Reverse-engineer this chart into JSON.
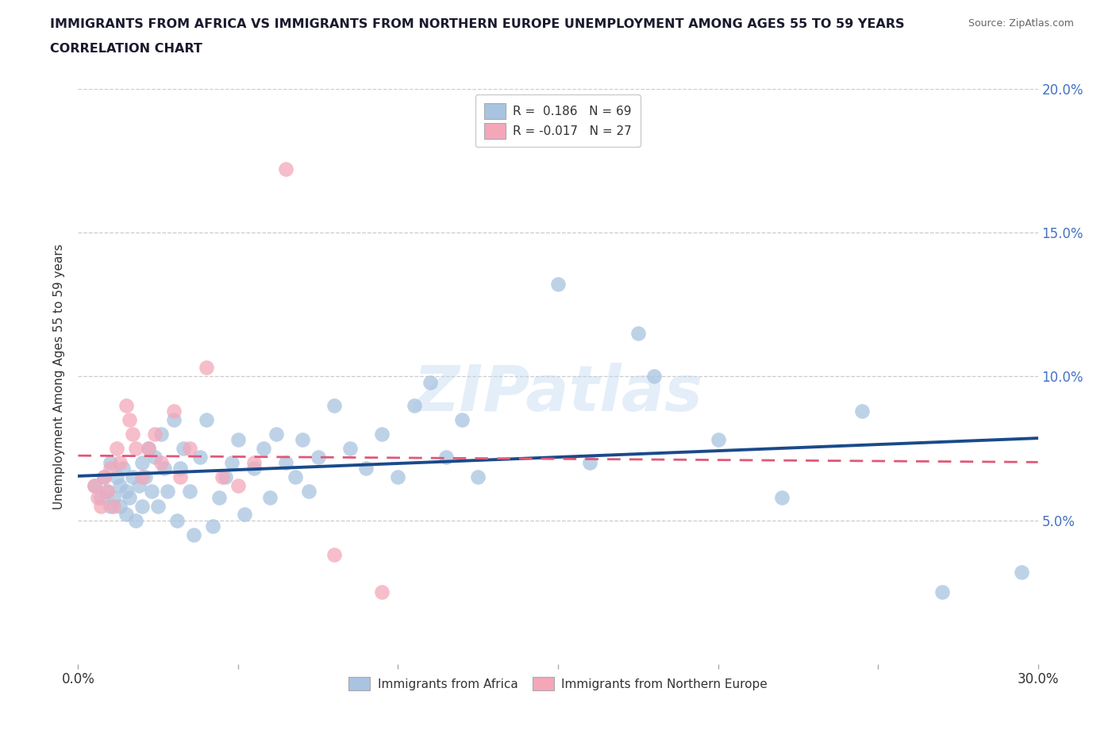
{
  "title_line1": "IMMIGRANTS FROM AFRICA VS IMMIGRANTS FROM NORTHERN EUROPE UNEMPLOYMENT AMONG AGES 55 TO 59 YEARS",
  "title_line2": "CORRELATION CHART",
  "source": "Source: ZipAtlas.com",
  "ylabel": "Unemployment Among Ages 55 to 59 years",
  "xlim": [
    0,
    0.3
  ],
  "ylim": [
    0,
    0.2
  ],
  "xticks": [
    0.0,
    0.05,
    0.1,
    0.15,
    0.2,
    0.25,
    0.3
  ],
  "yticks": [
    0.0,
    0.05,
    0.1,
    0.15,
    0.2
  ],
  "africa_R": 0.186,
  "africa_N": 69,
  "northern_europe_R": -0.017,
  "northern_europe_N": 27,
  "africa_color": "#a8c4e0",
  "northern_europe_color": "#f4a7b9",
  "africa_line_color": "#1a4a8a",
  "northern_europe_line_color": "#e05878",
  "background_color": "#ffffff",
  "watermark": "ZIPatlas",
  "africa_x": [
    0.005,
    0.007,
    0.008,
    0.009,
    0.01,
    0.01,
    0.011,
    0.012,
    0.013,
    0.013,
    0.014,
    0.015,
    0.015,
    0.016,
    0.017,
    0.018,
    0.019,
    0.02,
    0.02,
    0.021,
    0.022,
    0.023,
    0.024,
    0.025,
    0.026,
    0.027,
    0.028,
    0.03,
    0.031,
    0.032,
    0.033,
    0.035,
    0.036,
    0.038,
    0.04,
    0.042,
    0.044,
    0.046,
    0.048,
    0.05,
    0.052,
    0.055,
    0.058,
    0.06,
    0.062,
    0.065,
    0.068,
    0.07,
    0.072,
    0.075,
    0.08,
    0.085,
    0.09,
    0.095,
    0.1,
    0.105,
    0.11,
    0.115,
    0.12,
    0.125,
    0.15,
    0.16,
    0.175,
    0.18,
    0.2,
    0.22,
    0.245,
    0.27,
    0.295
  ],
  "africa_y": [
    0.062,
    0.058,
    0.065,
    0.06,
    0.055,
    0.07,
    0.058,
    0.065,
    0.055,
    0.062,
    0.068,
    0.06,
    0.052,
    0.058,
    0.065,
    0.05,
    0.062,
    0.07,
    0.055,
    0.065,
    0.075,
    0.06,
    0.072,
    0.055,
    0.08,
    0.068,
    0.06,
    0.085,
    0.05,
    0.068,
    0.075,
    0.06,
    0.045,
    0.072,
    0.085,
    0.048,
    0.058,
    0.065,
    0.07,
    0.078,
    0.052,
    0.068,
    0.075,
    0.058,
    0.08,
    0.07,
    0.065,
    0.078,
    0.06,
    0.072,
    0.09,
    0.075,
    0.068,
    0.08,
    0.065,
    0.09,
    0.098,
    0.072,
    0.085,
    0.065,
    0.132,
    0.07,
    0.115,
    0.1,
    0.078,
    0.058,
    0.088,
    0.025,
    0.032
  ],
  "northern_europe_x": [
    0.005,
    0.006,
    0.007,
    0.008,
    0.009,
    0.01,
    0.011,
    0.012,
    0.013,
    0.015,
    0.016,
    0.017,
    0.018,
    0.02,
    0.022,
    0.024,
    0.026,
    0.03,
    0.032,
    0.035,
    0.04,
    0.045,
    0.05,
    0.055,
    0.065,
    0.08,
    0.095
  ],
  "northern_europe_y": [
    0.062,
    0.058,
    0.055,
    0.065,
    0.06,
    0.068,
    0.055,
    0.075,
    0.07,
    0.09,
    0.085,
    0.08,
    0.075,
    0.065,
    0.075,
    0.08,
    0.07,
    0.088,
    0.065,
    0.075,
    0.103,
    0.065,
    0.062,
    0.07,
    0.172,
    0.038,
    0.025
  ]
}
